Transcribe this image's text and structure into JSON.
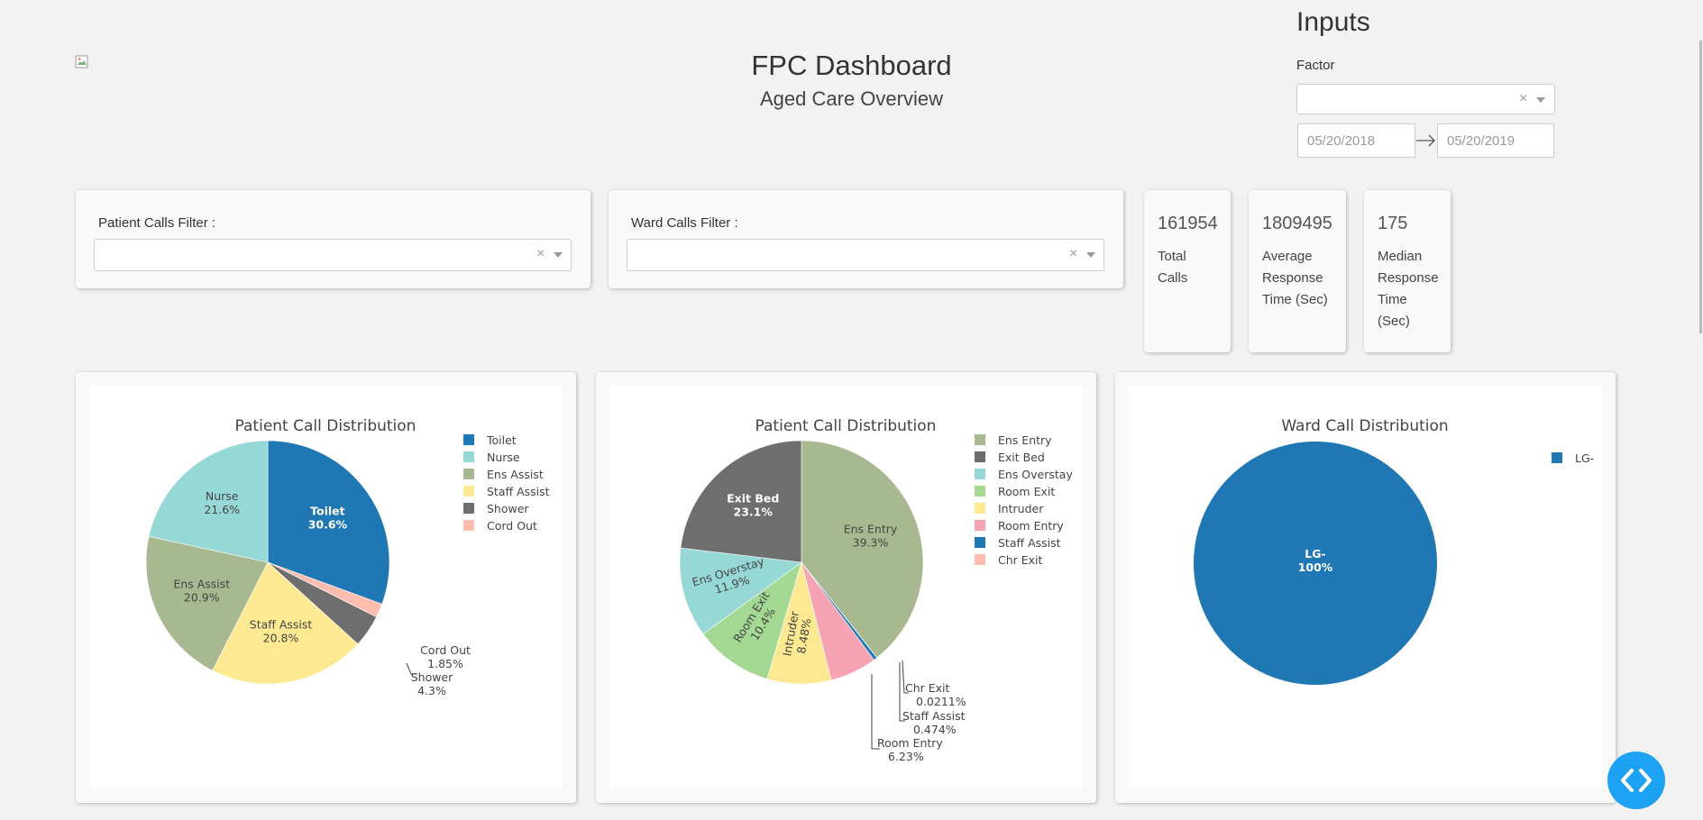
{
  "header": {
    "title": "FPC Dashboard",
    "subtitle": "Aged Care Overview"
  },
  "inputs": {
    "heading": "Inputs",
    "factor_label": "Factor",
    "factor_value": "",
    "start_date": "05/20/2018",
    "end_date": "05/20/2019"
  },
  "filters": {
    "patient_label": "Patient Calls Filter :",
    "ward_label": "Ward Calls Filter :"
  },
  "kpis": [
    {
      "value": "161954",
      "label_lines": [
        "Total",
        "Calls"
      ]
    },
    {
      "value": "1809495",
      "label_lines": [
        "Average",
        "Response",
        "Time (Sec)"
      ]
    },
    {
      "value": "175",
      "label_lines": [
        "Median",
        "Response",
        "Time",
        "(Sec)"
      ]
    }
  ],
  "chart_data": [
    {
      "type": "pie",
      "title": "Patient Call Distribution",
      "slices": [
        {
          "label": "Toilet",
          "value": 30.6,
          "text": "30.6%",
          "color": "#1f77b4"
        },
        {
          "label": "Cord Out",
          "value": 1.85,
          "text": "1.85%",
          "color": "#ffbdb0"
        },
        {
          "label": "Shower",
          "value": 4.3,
          "text": "4.3%",
          "color": "#6e6e6e"
        },
        {
          "label": "Staff Assist",
          "value": 20.8,
          "text": "20.8%",
          "color": "#fde992"
        },
        {
          "label": "Ens Assist",
          "value": 20.9,
          "text": "20.9%",
          "color": "#a8b890"
        },
        {
          "label": "Nurse",
          "value": 21.6,
          "text": "21.6%",
          "color": "#96d8d6"
        }
      ],
      "legend": [
        "Toilet",
        "Nurse",
        "Ens Assist",
        "Staff Assist",
        "Shower",
        "Cord Out"
      ],
      "legend_placement": "right"
    },
    {
      "type": "pie",
      "title": "Patient Call Distribution",
      "slices": [
        {
          "label": "Ens Entry",
          "value": 39.3,
          "text": "39.3%",
          "color": "#a8b890"
        },
        {
          "label": "Chr Exit",
          "value": 0.0211,
          "text": "0.0211%",
          "color": "#ffbdb0"
        },
        {
          "label": "Staff Assist",
          "value": 0.474,
          "text": "0.474%",
          "color": "#1f77b4"
        },
        {
          "label": "Room Entry",
          "value": 6.23,
          "text": "6.23%",
          "color": "#f7a3b4"
        },
        {
          "label": "Intruder",
          "value": 8.48,
          "text": "8.48%",
          "color": "#fde992"
        },
        {
          "label": "Room Exit",
          "value": 10.4,
          "text": "10.4%",
          "color": "#a3d993"
        },
        {
          "label": "Ens Overstay",
          "value": 11.9,
          "text": "11.9%",
          "color": "#96d8d6"
        },
        {
          "label": "Exit Bed",
          "value": 23.1,
          "text": "23.1%",
          "color": "#6e6e6e"
        }
      ],
      "legend": [
        "Ens Entry",
        "Exit Bed",
        "Ens Overstay",
        "Room Exit",
        "Intruder",
        "Room Entry",
        "Staff Assist",
        "Chr Exit"
      ],
      "legend_placement": "right"
    },
    {
      "type": "pie",
      "title": "Ward Call Distribution",
      "slices": [
        {
          "label": "LG-",
          "value": 100,
          "text": "100%",
          "color": "#1f77b4"
        }
      ],
      "legend": [
        "LG-"
      ],
      "legend_placement": "top-right"
    }
  ]
}
